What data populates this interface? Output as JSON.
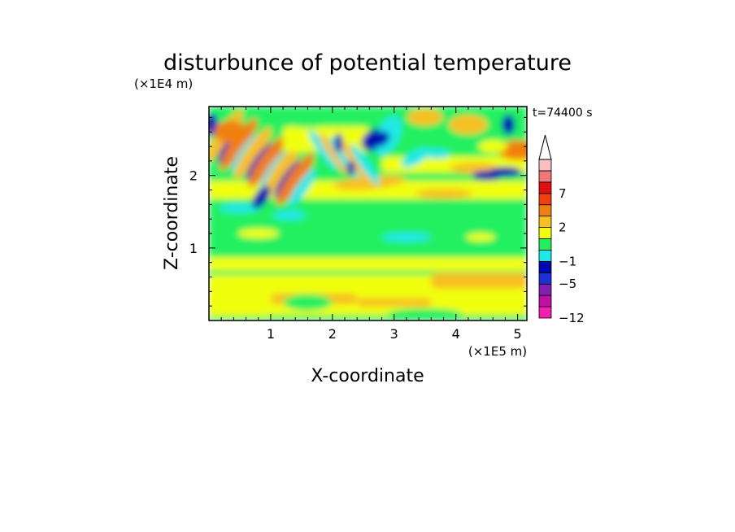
{
  "chart_data": {
    "type": "heatmap",
    "title": "disturbunce of potential temperature",
    "xlabel": "X-coordinate",
    "ylabel": "Z-coordinate",
    "x_unit": "(×1E5 m)",
    "y_unit": "(×1E4 m)",
    "time_label": "t=74400 s",
    "xlim": [
      0,
      5.15
    ],
    "ylim": [
      0,
      2.95
    ],
    "x_ticks": [
      {
        "value": 1,
        "label": "1"
      },
      {
        "value": 2,
        "label": "2"
      },
      {
        "value": 3,
        "label": "3"
      },
      {
        "value": 4,
        "label": "4"
      },
      {
        "value": 5,
        "label": "5"
      }
    ],
    "y_ticks": [
      {
        "value": 1,
        "label": "1"
      },
      {
        "value": 2,
        "label": "2"
      }
    ],
    "colorbar": {
      "levels": [
        {
          "label": "-12",
          "color": "#f020b0"
        },
        {
          "label": "",
          "color": "#c010a0"
        },
        {
          "label": "",
          "color": "#8020b0"
        },
        {
          "label": "-5",
          "color": "#2030d8"
        },
        {
          "label": "",
          "color": "#0008b0"
        },
        {
          "label": "-1",
          "color": "#20e8e8"
        },
        {
          "label": "",
          "color": "#20f060"
        },
        {
          "label": "",
          "color": "#f0ff10"
        },
        {
          "label": "2",
          "color": "#f8c020"
        },
        {
          "label": "",
          "color": "#f08010"
        },
        {
          "label": "",
          "color": "#f04010"
        },
        {
          "label": "7",
          "color": "#e01010"
        },
        {
          "label": "",
          "color": "#f07878"
        },
        {
          "label": "",
          "color": "#f8c0c0"
        }
      ],
      "extend_top": true
    }
  }
}
